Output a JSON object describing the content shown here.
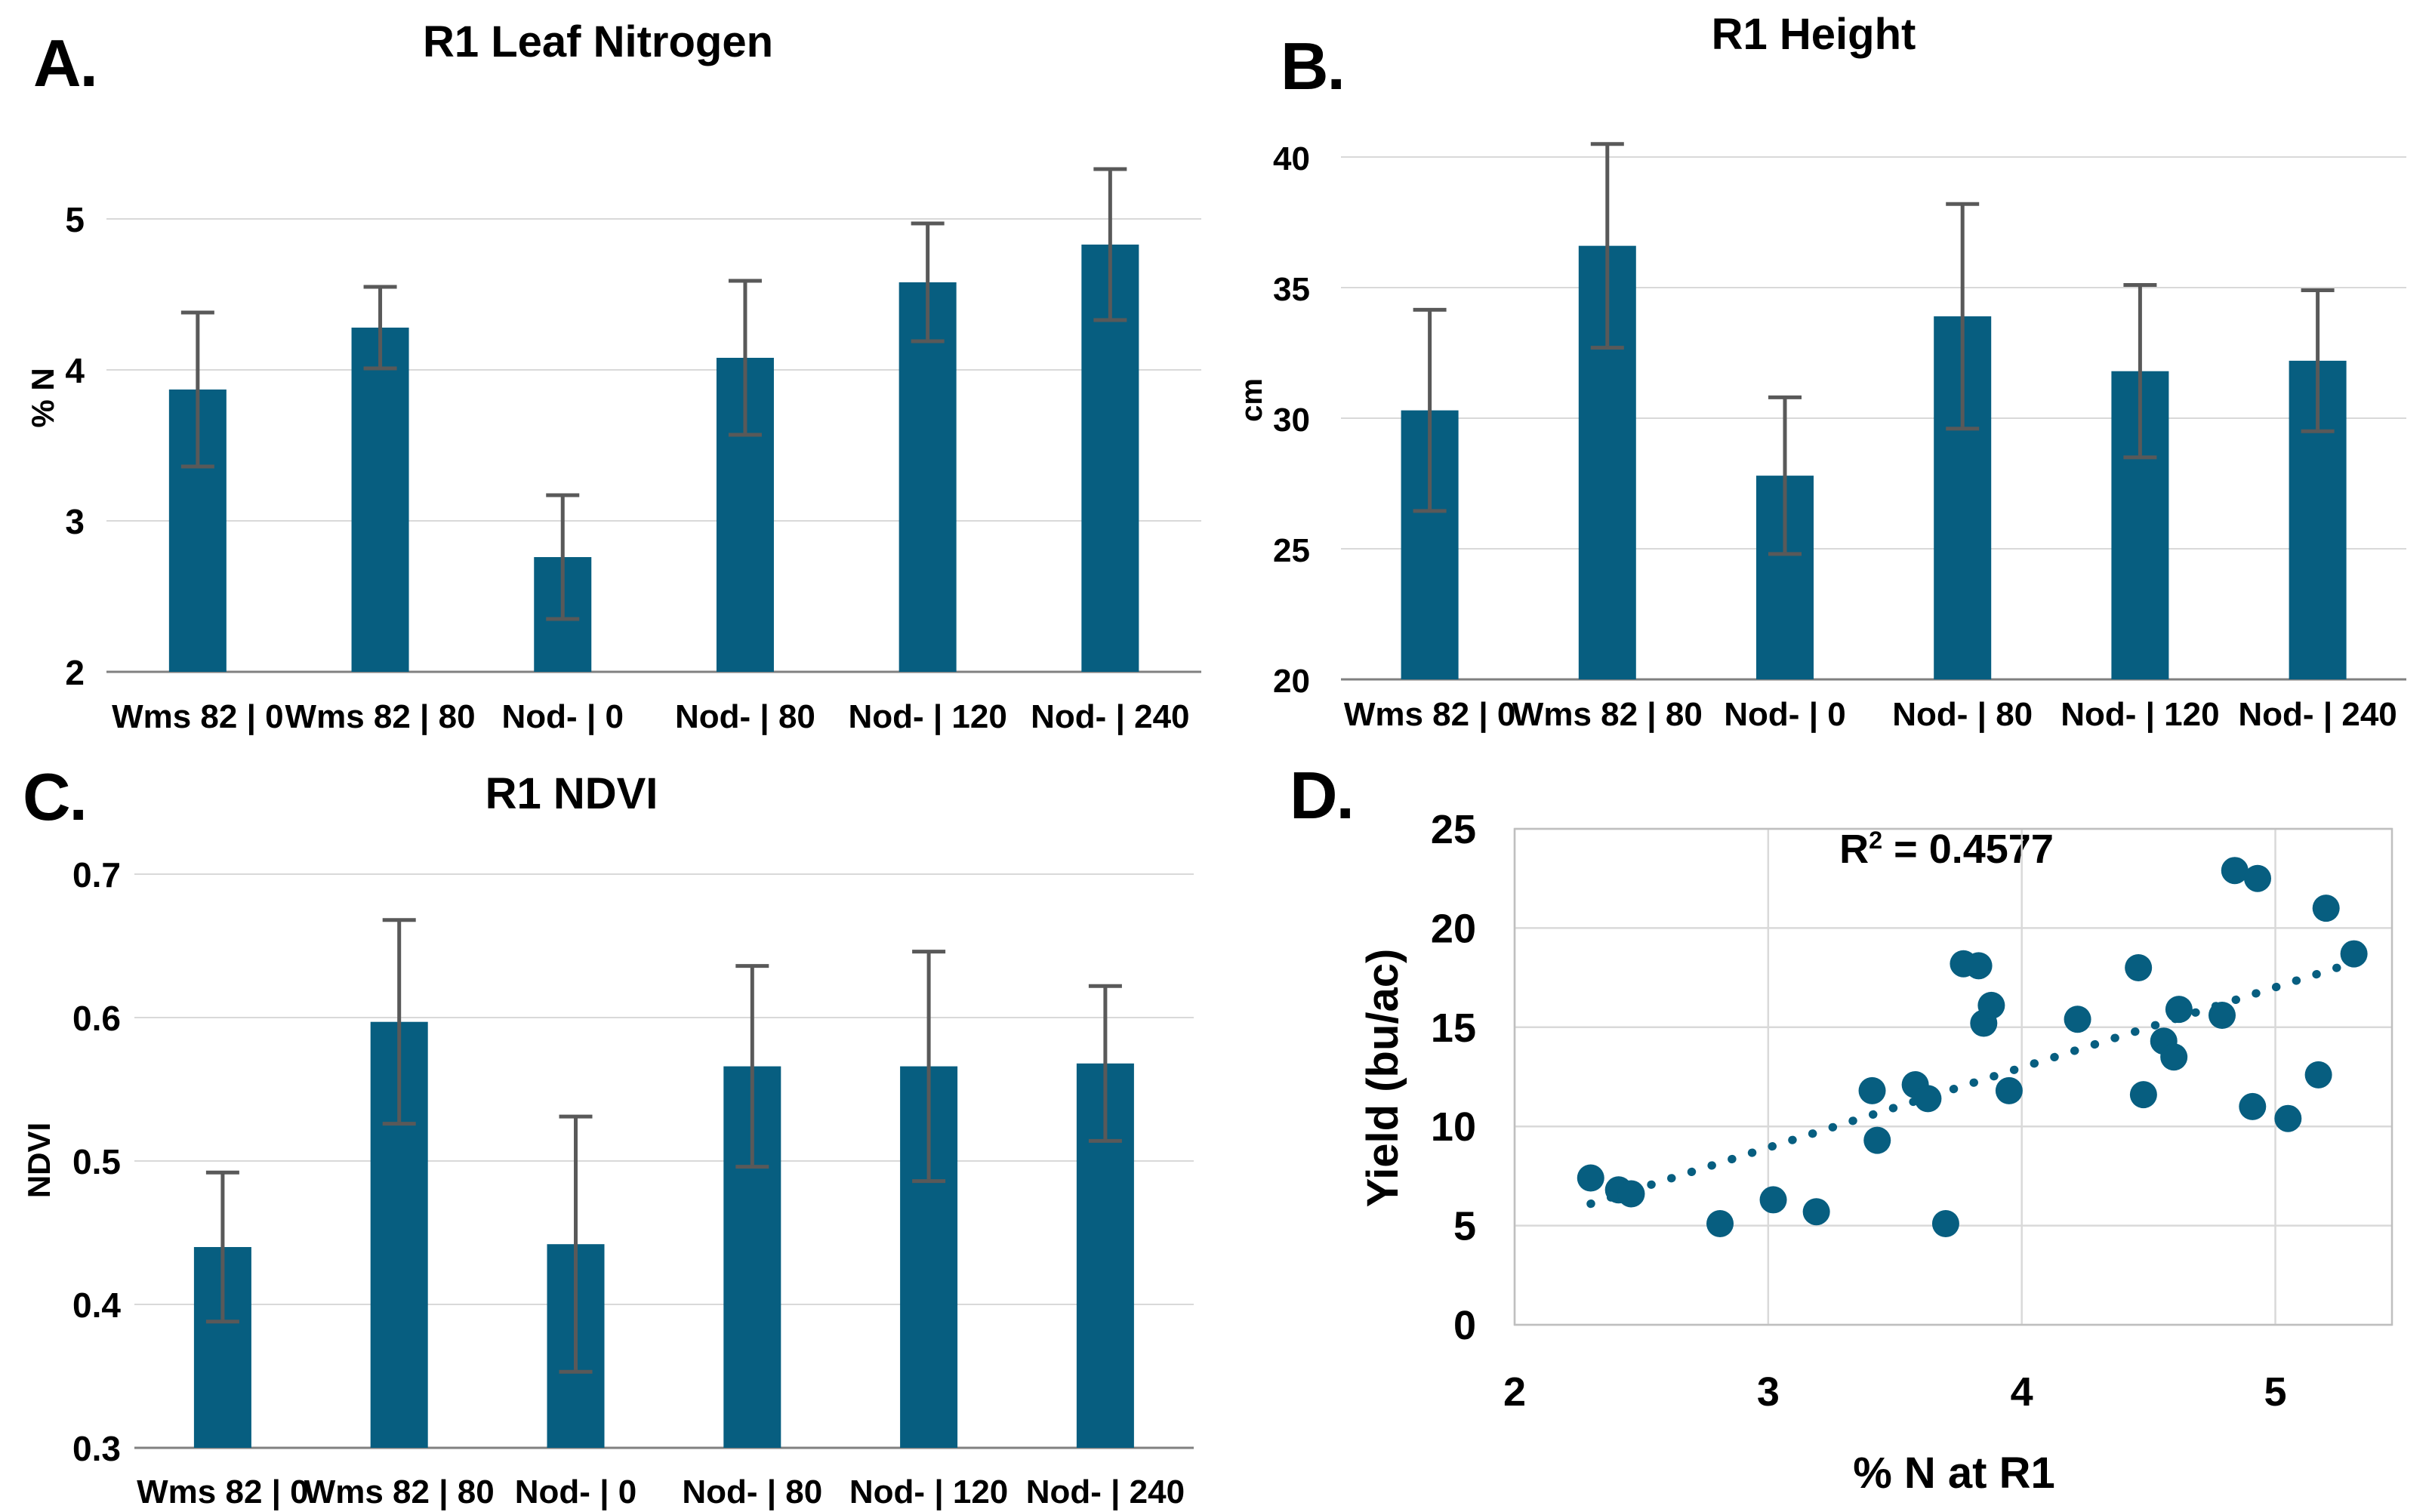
{
  "colors": {
    "bar": "#075E80",
    "marker": "#075E80",
    "trend": "#075E80",
    "error_bar": "#595959",
    "gridline": "#D9D9D9",
    "baseline": "#808080",
    "plot_border": "#BFBFBF",
    "text": "#000000"
  },
  "figure": {
    "panels": [
      {
        "id": "a",
        "letter": "A.",
        "title": "R1 Leaf Nitrogen"
      },
      {
        "id": "b",
        "letter": "B.",
        "title": "R1 Height"
      },
      {
        "id": "c",
        "letter": "C.",
        "title": "R1 NDVI"
      },
      {
        "id": "d",
        "letter": "D.",
        "annotation": {
          "base": "R",
          "sup": "2",
          "rest": " = 0.4577"
        }
      }
    ]
  },
  "chart_data": [
    {
      "id": "a",
      "type": "bar",
      "title": "R1 Leaf Nitrogen",
      "ylabel": "% N",
      "categories": [
        "Wms 82 | 0",
        "Wms 82 | 80",
        "Nod- | 0",
        "Nod- | 80",
        "Nod- | 120",
        "Nod- | 240"
      ],
      "values": [
        3.87,
        4.28,
        2.76,
        4.08,
        4.58,
        4.83
      ],
      "errors": [
        0.51,
        0.27,
        0.41,
        0.51,
        0.39,
        0.5
      ],
      "ylim": [
        2,
        5.6
      ],
      "yticks": [
        "2",
        "3",
        "4",
        "5"
      ],
      "grid": true,
      "legend": "none"
    },
    {
      "id": "b",
      "type": "bar",
      "title": "R1 Height",
      "ylabel": "cm",
      "categories": [
        "Wms 82 | 0",
        "Wms 82 | 80",
        "Nod- | 0",
        "Nod- | 80",
        "Nod- | 120",
        "Nod- | 240"
      ],
      "values": [
        30.3,
        36.6,
        27.8,
        33.9,
        31.8,
        32.2
      ],
      "errors": [
        3.85,
        3.9,
        3.0,
        4.3,
        3.3,
        2.7
      ],
      "ylim": [
        20,
        41.5
      ],
      "yticks": [
        "20",
        "25",
        "30",
        "35",
        "40"
      ],
      "grid": true,
      "legend": "none"
    },
    {
      "id": "c",
      "type": "bar",
      "title": "R1 NDVI",
      "ylabel": "NDVI",
      "categories": [
        "Wms 82 | 0",
        "Wms 82 | 80",
        "Nod- | 0",
        "Nod- | 80",
        "Nod- | 120",
        "Nod- | 240"
      ],
      "values": [
        0.44,
        0.597,
        0.442,
        0.566,
        0.566,
        0.568
      ],
      "errors": [
        0.052,
        0.071,
        0.089,
        0.07,
        0.08,
        0.054
      ],
      "ylim": [
        0.3,
        0.72
      ],
      "yticks": [
        "0.3",
        "0.4",
        "0.5",
        "0.6",
        "0.7"
      ],
      "grid": true,
      "legend": "none"
    },
    {
      "id": "d",
      "type": "scatter",
      "xlabel": "% N at R1",
      "ylabel": "Yield (bu/ac)",
      "r_squared": 0.4577,
      "xlim": [
        2,
        5.46
      ],
      "ylim": [
        0,
        25
      ],
      "xticks": [
        "2",
        "3",
        "4",
        "5"
      ],
      "yticks": [
        "0",
        "5",
        "10",
        "15",
        "20",
        "25"
      ],
      "grid": true,
      "points": [
        [
          2.3,
          7.4
        ],
        [
          2.41,
          6.8
        ],
        [
          2.46,
          6.6
        ],
        [
          2.81,
          5.1
        ],
        [
          3.02,
          6.3
        ],
        [
          3.19,
          5.7
        ],
        [
          3.41,
          11.8
        ],
        [
          3.43,
          9.3
        ],
        [
          3.58,
          12.1
        ],
        [
          3.63,
          11.4
        ],
        [
          3.7,
          5.1
        ],
        [
          3.77,
          18.2
        ],
        [
          3.83,
          18.1
        ],
        [
          3.85,
          15.2
        ],
        [
          3.88,
          16.1
        ],
        [
          3.95,
          11.8
        ],
        [
          4.22,
          15.4
        ],
        [
          4.46,
          18.0
        ],
        [
          4.48,
          11.6
        ],
        [
          4.56,
          14.3
        ],
        [
          4.6,
          13.5
        ],
        [
          4.62,
          15.9
        ],
        [
          4.79,
          15.6
        ],
        [
          4.84,
          22.9
        ],
        [
          4.93,
          22.5
        ],
        [
          4.91,
          11.0
        ],
        [
          5.05,
          10.4
        ],
        [
          5.17,
          12.6
        ],
        [
          5.2,
          21.0
        ],
        [
          5.31,
          18.7
        ]
      ],
      "trend": {
        "x1": 2.3,
        "y1": 6.1,
        "x2": 5.38,
        "y2": 18.55
      }
    }
  ]
}
